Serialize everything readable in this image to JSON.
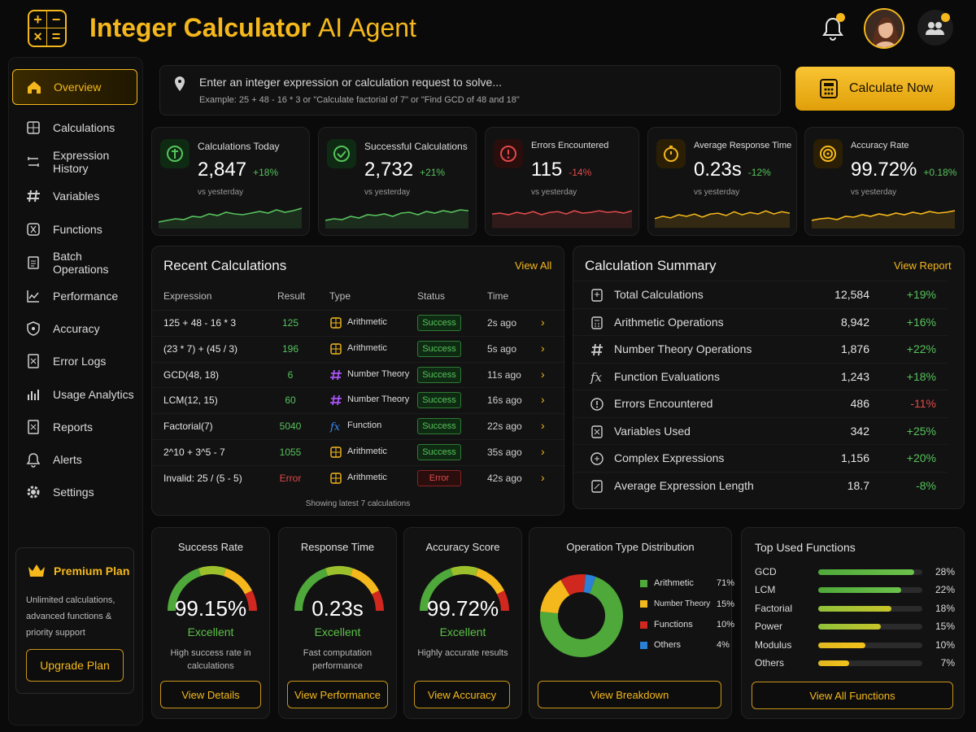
{
  "header": {
    "title_bold": "Integer Calculator",
    "title_rest": "AI Agent",
    "logo_glyphs": [
      "+",
      "−",
      "×",
      "="
    ]
  },
  "sidebar": {
    "items": [
      {
        "label": "Overview",
        "icon": "home-icon",
        "active": true
      },
      {
        "label": "Calculations",
        "icon": "calculator-icon"
      },
      {
        "label": "Expression History",
        "icon": "history-icon"
      },
      {
        "label": "Variables",
        "icon": "hash-icon"
      },
      {
        "label": "Functions",
        "icon": "function-icon"
      },
      {
        "label": "Batch Operations",
        "icon": "batch-icon"
      },
      {
        "label": "Performance",
        "icon": "chart-line-icon"
      },
      {
        "label": "Accuracy",
        "icon": "shield-check-icon"
      },
      {
        "label": "Error Logs",
        "icon": "error-log-icon"
      },
      {
        "label": "Usage Analytics",
        "icon": "bar-chart-icon"
      },
      {
        "label": "Reports",
        "icon": "report-icon"
      },
      {
        "label": "Alerts",
        "icon": "bell-icon"
      },
      {
        "label": "Settings",
        "icon": "gear-icon"
      }
    ],
    "premium": {
      "title": "Premium Plan",
      "desc": "Unlimited calculations, advanced functions & priority support",
      "button": "Upgrade Plan"
    }
  },
  "search": {
    "placeholder": "Enter an integer expression or calculation request to solve...",
    "hint": "Example: 25 + 48 - 16 * 3 or \"Calculate factorial of 7\" or \"Find GCD of 48 and 18\"",
    "button": "Calculate Now"
  },
  "stats": [
    {
      "label": "Calculations Today",
      "value": "2,847",
      "change": "+18%",
      "trend": "up",
      "sub": "vs yesterday",
      "color": "#56c25c",
      "icon": "calculations-today-icon"
    },
    {
      "label": "Successful Calculations",
      "value": "2,732",
      "change": "+21%",
      "trend": "up",
      "sub": "vs yesterday",
      "color": "#56c25c",
      "icon": "check-circle-icon"
    },
    {
      "label": "Errors Encountered",
      "value": "115",
      "change": "-14%",
      "trend": "down",
      "sub": "vs yesterday",
      "color": "#e04a4a",
      "icon": "alert-icon"
    },
    {
      "label": "Average Response Time",
      "value": "0.23s",
      "change": "-12%",
      "trend": "up",
      "sub": "vs yesterday",
      "color": "#f5b81c",
      "icon": "stopwatch-icon"
    },
    {
      "label": "Accuracy Rate",
      "value": "99.72%",
      "change": "+0.18%",
      "trend": "up",
      "sub": "vs yesterday",
      "color": "#f5b81c",
      "icon": "target-icon"
    }
  ],
  "recent": {
    "title": "Recent Calculations",
    "link": "View All",
    "headers": [
      "Expression",
      "Result",
      "Type",
      "Status",
      "Time"
    ],
    "rows": [
      {
        "expr": "125 + 48 - 16 * 3",
        "result": "125",
        "type": "Arithmetic",
        "type_icon": "calculator-icon",
        "status": "Success",
        "time": "2s ago"
      },
      {
        "expr": "(23 * 7) + (45 / 3)",
        "result": "196",
        "type": "Arithmetic",
        "type_icon": "calculator-icon",
        "status": "Success",
        "time": "5s ago"
      },
      {
        "expr": "GCD(48, 18)",
        "result": "6",
        "type": "Number Theory",
        "type_icon": "hash-icon",
        "status": "Success",
        "time": "11s ago"
      },
      {
        "expr": "LCM(12, 15)",
        "result": "60",
        "type": "Number Theory",
        "type_icon": "hash-icon",
        "status": "Success",
        "time": "16s ago"
      },
      {
        "expr": "Factorial(7)",
        "result": "5040",
        "type": "Function",
        "type_icon": "function-icon",
        "status": "Success",
        "time": "22s ago"
      },
      {
        "expr": "2^10 + 3^5 - 7",
        "result": "1055",
        "type": "Arithmetic",
        "type_icon": "calculator-icon",
        "status": "Success",
        "time": "35s ago"
      },
      {
        "expr": "Invalid: 25 / (5 - 5)",
        "result": "Error",
        "type": "Arithmetic",
        "type_icon": "calculator-icon",
        "status": "Error",
        "time": "42s ago"
      }
    ],
    "footer": "Showing latest 7 calculations"
  },
  "summary": {
    "title": "Calculation Summary",
    "link": "View Report",
    "rows": [
      {
        "label": "Total Calculations",
        "value": "12,584",
        "change": "+19%",
        "icon": "total-icon"
      },
      {
        "label": "Arithmetic Operations",
        "value": "8,942",
        "change": "+16%",
        "icon": "calculator-icon"
      },
      {
        "label": "Number Theory Operations",
        "value": "1,876",
        "change": "+22%",
        "icon": "hash-icon"
      },
      {
        "label": "Function Evaluations",
        "value": "1,243",
        "change": "+18%",
        "icon": "function-icon"
      },
      {
        "label": "Errors Encountered",
        "value": "486",
        "change": "-11%",
        "icon": "alert-icon"
      },
      {
        "label": "Variables Used",
        "value": "342",
        "change": "+25%",
        "icon": "variable-icon"
      },
      {
        "label": "Complex Expressions",
        "value": "1,156",
        "change": "+20%",
        "icon": "complex-icon"
      },
      {
        "label": "Average Expression Length",
        "value": "18.7",
        "change": "-8%",
        "icon": "length-icon"
      }
    ]
  },
  "gauges": [
    {
      "title": "Success Rate",
      "value": "99.15%",
      "level": 0.9915,
      "rating": "Excellent",
      "desc": "High success rate in calculations",
      "button": "View Details"
    },
    {
      "title": "Response Time",
      "value": "0.23s",
      "level": 0.85,
      "rating": "Excellent",
      "desc": "Fast computation performance",
      "button": "View Performance"
    },
    {
      "title": "Accuracy Score",
      "value": "99.72%",
      "level": 0.9972,
      "rating": "Excellent",
      "desc": "Highly accurate results",
      "button": "View Accuracy"
    }
  ],
  "distribution": {
    "title": "Operation Type Distribution",
    "button": "View Breakdown",
    "items": [
      {
        "label": "Arithmetic",
        "pct": "71%",
        "value": 71,
        "color": "#4fa83a"
      },
      {
        "label": "Number Theory",
        "pct": "15%",
        "value": 15,
        "color": "#f5b81c"
      },
      {
        "label": "Functions",
        "pct": "10%",
        "value": 10,
        "color": "#d0281f"
      },
      {
        "label": "Others",
        "pct": "4%",
        "value": 4,
        "color": "#2a7fd6"
      }
    ]
  },
  "top_functions": {
    "title": "Top Used Functions",
    "button": "View All Functions",
    "items": [
      {
        "label": "GCD",
        "pct": "28%",
        "value": 0.92
      },
      {
        "label": "LCM",
        "pct": "22%",
        "value": 0.8
      },
      {
        "label": "Factorial",
        "pct": "18%",
        "value": 0.7
      },
      {
        "label": "Power",
        "pct": "15%",
        "value": 0.6
      },
      {
        "label": "Modulus",
        "pct": "10%",
        "value": 0.45
      },
      {
        "label": "Others",
        "pct": "7%",
        "value": 0.3
      }
    ]
  }
}
